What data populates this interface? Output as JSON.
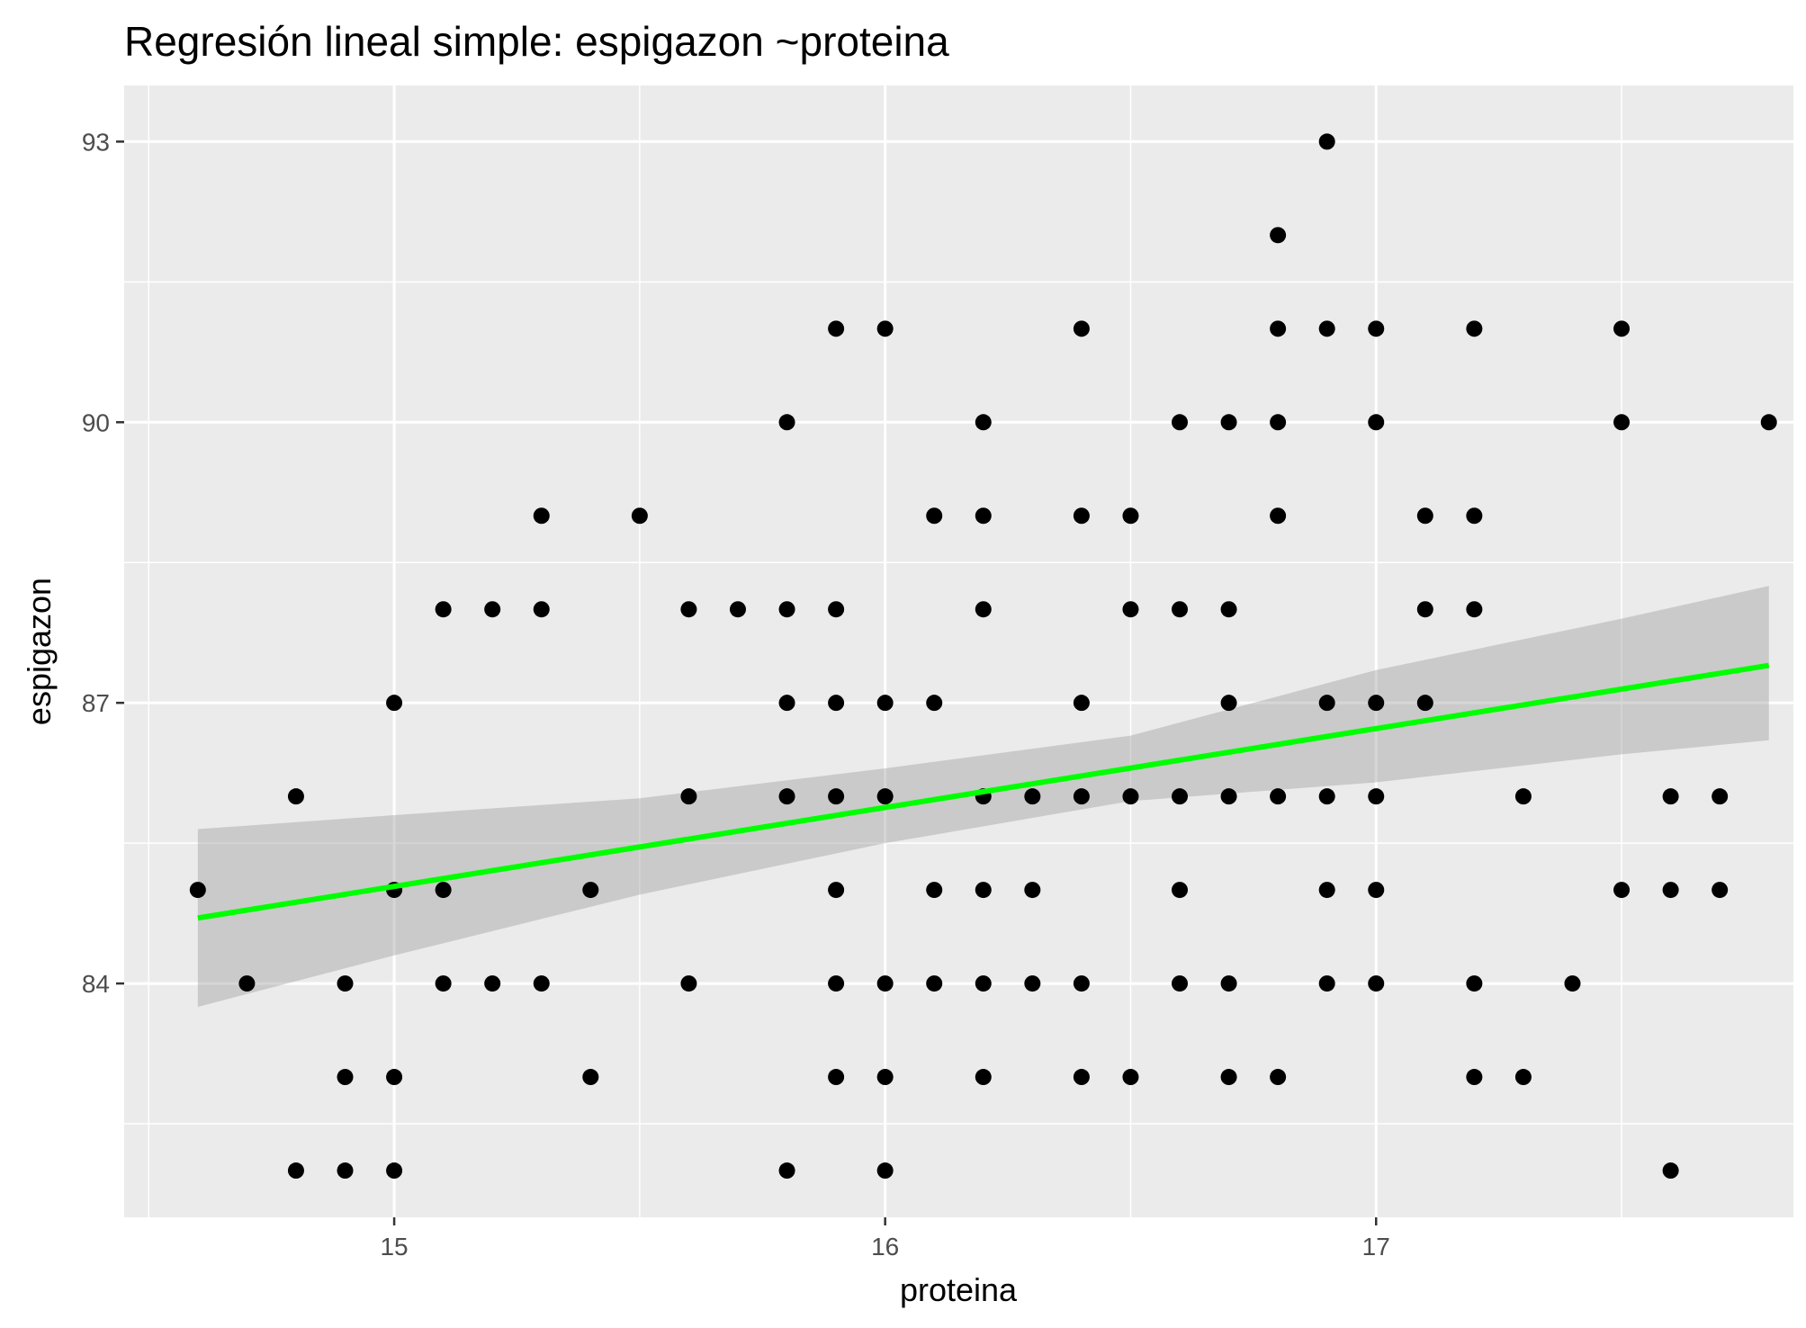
{
  "chart_data": {
    "type": "scatter",
    "title": "Regresión lineal simple:  espigazon ~proteina",
    "xlabel": "proteina",
    "ylabel": "espigazon",
    "xlim": [
      14.45,
      17.85
    ],
    "ylim": [
      81.5,
      93.6
    ],
    "x_ticks": [
      15,
      16,
      17
    ],
    "y_ticks": [
      84,
      87,
      90,
      93
    ],
    "grid": true,
    "legend": "none",
    "colors": {
      "panel_background": "#ebebeb",
      "grid": "#ffffff",
      "points": "#000000",
      "fit_line": "#00ff00",
      "confidence_band": "#999999"
    },
    "points": [
      [
        14.6,
        85
      ],
      [
        14.7,
        84
      ],
      [
        14.8,
        86
      ],
      [
        14.8,
        82
      ],
      [
        14.9,
        84
      ],
      [
        14.9,
        83
      ],
      [
        14.9,
        82
      ],
      [
        15.0,
        87
      ],
      [
        15.0,
        85
      ],
      [
        15.0,
        83
      ],
      [
        15.0,
        82
      ],
      [
        15.1,
        88
      ],
      [
        15.1,
        85
      ],
      [
        15.1,
        84
      ],
      [
        15.2,
        88
      ],
      [
        15.2,
        84
      ],
      [
        15.3,
        89
      ],
      [
        15.3,
        88
      ],
      [
        15.3,
        84
      ],
      [
        15.4,
        85
      ],
      [
        15.4,
        83
      ],
      [
        15.5,
        89
      ],
      [
        15.6,
        88
      ],
      [
        15.6,
        86
      ],
      [
        15.6,
        84
      ],
      [
        15.7,
        88
      ],
      [
        15.8,
        90
      ],
      [
        15.8,
        88
      ],
      [
        15.8,
        87
      ],
      [
        15.8,
        86
      ],
      [
        15.8,
        82
      ],
      [
        15.9,
        91
      ],
      [
        15.9,
        88
      ],
      [
        15.9,
        87
      ],
      [
        15.9,
        86
      ],
      [
        15.9,
        85
      ],
      [
        15.9,
        84
      ],
      [
        15.9,
        83
      ],
      [
        16.0,
        91
      ],
      [
        16.0,
        87
      ],
      [
        16.0,
        86
      ],
      [
        16.0,
        84
      ],
      [
        16.0,
        83
      ],
      [
        16.0,
        82
      ],
      [
        16.1,
        89
      ],
      [
        16.1,
        87
      ],
      [
        16.1,
        85
      ],
      [
        16.1,
        84
      ],
      [
        16.2,
        90
      ],
      [
        16.2,
        89
      ],
      [
        16.2,
        88
      ],
      [
        16.2,
        86
      ],
      [
        16.2,
        85
      ],
      [
        16.2,
        84
      ],
      [
        16.2,
        83
      ],
      [
        16.3,
        86
      ],
      [
        16.3,
        85
      ],
      [
        16.3,
        84
      ],
      [
        16.4,
        91
      ],
      [
        16.4,
        89
      ],
      [
        16.4,
        87
      ],
      [
        16.4,
        86
      ],
      [
        16.4,
        84
      ],
      [
        16.4,
        83
      ],
      [
        16.5,
        89
      ],
      [
        16.5,
        88
      ],
      [
        16.5,
        86
      ],
      [
        16.5,
        83
      ],
      [
        16.6,
        90
      ],
      [
        16.6,
        88
      ],
      [
        16.6,
        86
      ],
      [
        16.6,
        85
      ],
      [
        16.6,
        84
      ],
      [
        16.7,
        90
      ],
      [
        16.7,
        88
      ],
      [
        16.7,
        87
      ],
      [
        16.7,
        86
      ],
      [
        16.7,
        84
      ],
      [
        16.7,
        83
      ],
      [
        16.8,
        92
      ],
      [
        16.8,
        91
      ],
      [
        16.8,
        90
      ],
      [
        16.8,
        89
      ],
      [
        16.8,
        86
      ],
      [
        16.8,
        83
      ],
      [
        16.9,
        93
      ],
      [
        16.9,
        91
      ],
      [
        16.9,
        87
      ],
      [
        16.9,
        86
      ],
      [
        16.9,
        85
      ],
      [
        16.9,
        84
      ],
      [
        17.0,
        91
      ],
      [
        17.0,
        90
      ],
      [
        17.0,
        87
      ],
      [
        17.0,
        86
      ],
      [
        17.0,
        85
      ],
      [
        17.0,
        84
      ],
      [
        17.1,
        89
      ],
      [
        17.1,
        88
      ],
      [
        17.1,
        87
      ],
      [
        17.2,
        91
      ],
      [
        17.2,
        89
      ],
      [
        17.2,
        88
      ],
      [
        17.2,
        84
      ],
      [
        17.2,
        83
      ],
      [
        17.3,
        86
      ],
      [
        17.3,
        83
      ],
      [
        17.4,
        84
      ],
      [
        17.5,
        91
      ],
      [
        17.5,
        90
      ],
      [
        17.5,
        85
      ],
      [
        17.6,
        86
      ],
      [
        17.6,
        85
      ],
      [
        17.6,
        82
      ],
      [
        17.7,
        86
      ],
      [
        17.7,
        85
      ],
      [
        17.8,
        90
      ]
    ],
    "fit_line": {
      "x": [
        14.6,
        17.8
      ],
      "y": [
        84.7,
        87.4
      ]
    },
    "confidence_band": {
      "x": [
        14.6,
        15.0,
        15.5,
        16.0,
        16.5,
        17.0,
        17.5,
        17.8
      ],
      "upper": [
        85.65,
        85.8,
        85.98,
        86.3,
        86.65,
        87.35,
        87.9,
        88.25
      ],
      "lower": [
        83.75,
        84.3,
        84.95,
        85.5,
        85.95,
        86.15,
        86.45,
        86.6
      ]
    }
  }
}
